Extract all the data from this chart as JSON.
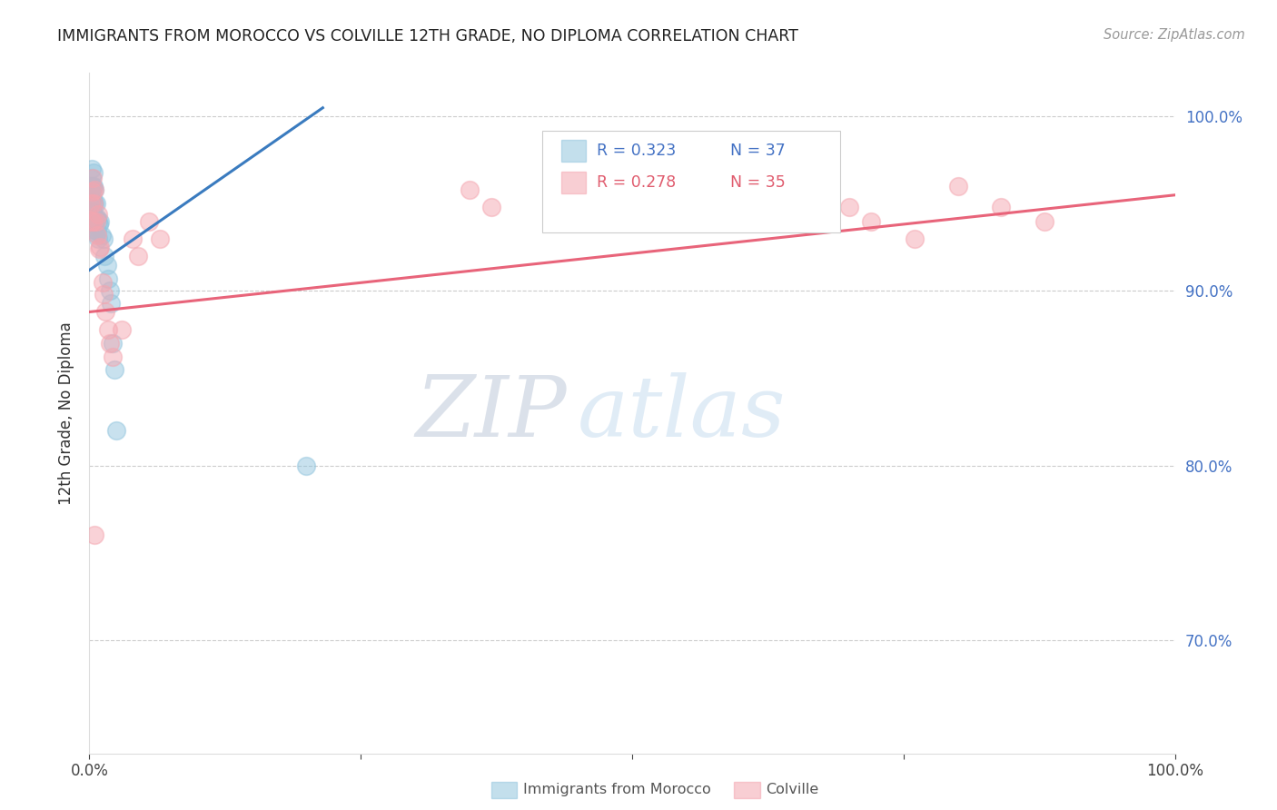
{
  "title": "IMMIGRANTS FROM MOROCCO VS COLVILLE 12TH GRADE, NO DIPLOMA CORRELATION CHART",
  "source": "Source: ZipAtlas.com",
  "ylabel": "12th Grade, No Diploma",
  "legend_blue_r": "R = 0.323",
  "legend_blue_n": "N = 37",
  "legend_pink_r": "R = 0.278",
  "legend_pink_n": "N = 35",
  "legend_label_blue": "Immigrants from Morocco",
  "legend_label_pink": "Colville",
  "blue_color": "#92c5de",
  "pink_color": "#f4a6b0",
  "blue_line_color": "#3a7bbf",
  "pink_line_color": "#e8647a",
  "xlim": [
    0.0,
    1.0
  ],
  "ylim": [
    0.635,
    1.025
  ],
  "yticks": [
    0.7,
    0.8,
    0.9,
    1.0
  ],
  "ytick_labels": [
    "70.0%",
    "80.0%",
    "90.0%",
    "100.0%"
  ],
  "blue_scatter_x": [
    0.001,
    0.001,
    0.002,
    0.002,
    0.002,
    0.003,
    0.003,
    0.003,
    0.003,
    0.004,
    0.004,
    0.004,
    0.004,
    0.005,
    0.005,
    0.005,
    0.005,
    0.006,
    0.006,
    0.006,
    0.007,
    0.007,
    0.008,
    0.008,
    0.009,
    0.01,
    0.011,
    0.013,
    0.014,
    0.016,
    0.017,
    0.019,
    0.02,
    0.021,
    0.023,
    0.025,
    0.2
  ],
  "blue_scatter_y": [
    0.952,
    0.96,
    0.97,
    0.965,
    0.958,
    0.96,
    0.953,
    0.945,
    0.938,
    0.968,
    0.96,
    0.95,
    0.943,
    0.958,
    0.95,
    0.942,
    0.935,
    0.95,
    0.942,
    0.933,
    0.942,
    0.934,
    0.94,
    0.93,
    0.938,
    0.94,
    0.932,
    0.93,
    0.92,
    0.915,
    0.907,
    0.9,
    0.893,
    0.87,
    0.855,
    0.82,
    0.8
  ],
  "pink_scatter_x": [
    0.001,
    0.002,
    0.003,
    0.003,
    0.004,
    0.004,
    0.005,
    0.006,
    0.007,
    0.008,
    0.009,
    0.01,
    0.012,
    0.013,
    0.015,
    0.017,
    0.019,
    0.021,
    0.03,
    0.04,
    0.045,
    0.055,
    0.065,
    0.35,
    0.37,
    0.52,
    0.54,
    0.6,
    0.7,
    0.72,
    0.76,
    0.8,
    0.84,
    0.88,
    0.005
  ],
  "pink_scatter_y": [
    0.95,
    0.94,
    0.965,
    0.957,
    0.95,
    0.94,
    0.958,
    0.94,
    0.932,
    0.944,
    0.924,
    0.925,
    0.905,
    0.898,
    0.888,
    0.878,
    0.87,
    0.862,
    0.878,
    0.93,
    0.92,
    0.94,
    0.93,
    0.958,
    0.948,
    0.958,
    0.948,
    0.96,
    0.948,
    0.94,
    0.93,
    0.96,
    0.948,
    0.94,
    0.76
  ],
  "blue_line": {
    "x0": 0.0,
    "x1": 0.215,
    "y0": 0.912,
    "y1": 1.005
  },
  "pink_line": {
    "x0": 0.0,
    "x1": 1.0,
    "y0": 0.888,
    "y1": 0.955
  }
}
